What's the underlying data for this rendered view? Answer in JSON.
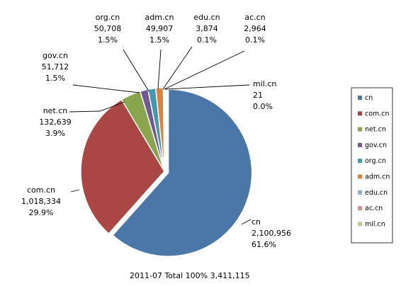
{
  "chart_data": {
    "type": "pie",
    "caption": "2011-07  Total 100%  3,411,115",
    "legend_position": "right",
    "slices": [
      {
        "name": "cn",
        "value": 2100956,
        "value_label": "2,100,956",
        "percent": "61.6%",
        "color": "#4a76a8"
      },
      {
        "name": "com.cn",
        "value": 1018334,
        "value_label": "1,018,334",
        "percent": "29.9%",
        "color": "#aa4643"
      },
      {
        "name": "net.cn",
        "value": 132639,
        "value_label": "132,639",
        "percent": "3.9%",
        "color": "#89a54e"
      },
      {
        "name": "gov.cn",
        "value": 51712,
        "value_label": "51,712",
        "percent": "1.5%",
        "color": "#71588f"
      },
      {
        "name": "org.cn",
        "value": 50708,
        "value_label": "50,708",
        "percent": "1.5%",
        "color": "#4198af"
      },
      {
        "name": "adm.cn",
        "value": 49907,
        "value_label": "49,907",
        "percent": "1.5%",
        "color": "#db843d"
      },
      {
        "name": "edu.cn",
        "value": 3874,
        "value_label": "3,874",
        "percent": "0.1%",
        "color": "#93a9cf"
      },
      {
        "name": "ac.cn",
        "value": 2964,
        "value_label": "2,964",
        "percent": "0.1%",
        "color": "#d19392"
      },
      {
        "name": "mil.cn",
        "value": 21,
        "value_label": "21",
        "percent": "0.0%",
        "color": "#b9cd96"
      }
    ]
  }
}
